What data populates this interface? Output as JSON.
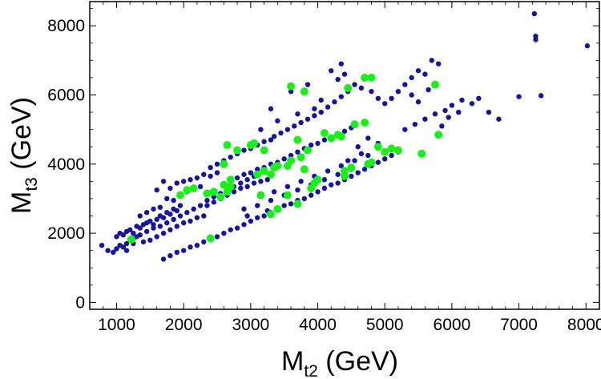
{
  "chart_data": {
    "type": "scatter",
    "title": "",
    "xlabel": {
      "main": "M",
      "sub": "t2",
      "unit": " (GeV)"
    },
    "ylabel": {
      "main": "M",
      "sub": "t3",
      "unit": " (GeV)"
    },
    "xlim": [
      600,
      8200
    ],
    "ylim": [
      -200,
      8700
    ],
    "xticks": [
      1000,
      2000,
      3000,
      4000,
      5000,
      6000,
      7000,
      8000
    ],
    "yticks": [
      0,
      2000,
      4000,
      6000,
      8000
    ],
    "grid": false,
    "legend": "none",
    "series": [
      {
        "name": "blue points",
        "color": "#1414a0",
        "marker_size": "small",
        "points": [
          [
            780,
            1650
          ],
          [
            870,
            1500
          ],
          [
            950,
            1450
          ],
          [
            1000,
            1550
          ],
          [
            1050,
            1650
          ],
          [
            1100,
            1600
          ],
          [
            1150,
            1700
          ],
          [
            1200,
            1800
          ],
          [
            1250,
            1850
          ],
          [
            1300,
            1900
          ],
          [
            1000,
            1900
          ],
          [
            1050,
            2000
          ],
          [
            1100,
            1950
          ],
          [
            1150,
            2050
          ],
          [
            1200,
            2100
          ],
          [
            1250,
            2000
          ],
          [
            1300,
            2200
          ],
          [
            1350,
            2150
          ],
          [
            1400,
            2250
          ],
          [
            1450,
            2300
          ],
          [
            1500,
            2350
          ],
          [
            1550,
            2250
          ],
          [
            1600,
            2400
          ],
          [
            1650,
            2500
          ],
          [
            1700,
            2450
          ],
          [
            1750,
            2600
          ],
          [
            1800,
            2550
          ],
          [
            1850,
            2700
          ],
          [
            1900,
            2650
          ],
          [
            1950,
            2800
          ],
          [
            1400,
            1750
          ],
          [
            1500,
            1800
          ],
          [
            1600,
            1900
          ],
          [
            1700,
            2000
          ],
          [
            1800,
            2100
          ],
          [
            1900,
            2200
          ],
          [
            2000,
            2300
          ],
          [
            2100,
            2350
          ],
          [
            2200,
            2450
          ],
          [
            2300,
            2500
          ],
          [
            1350,
            2500
          ],
          [
            1450,
            2600
          ],
          [
            1550,
            2700
          ],
          [
            1650,
            2750
          ],
          [
            1750,
            3000
          ],
          [
            1850,
            2950
          ],
          [
            1950,
            3100
          ],
          [
            2050,
            3200
          ],
          [
            2150,
            3300
          ],
          [
            2250,
            3350
          ],
          [
            1700,
            3500
          ],
          [
            1600,
            3250
          ],
          [
            1800,
            3300
          ],
          [
            1900,
            3450
          ],
          [
            2000,
            3500
          ],
          [
            2100,
            3550
          ],
          [
            2200,
            3600
          ],
          [
            2300,
            3700
          ],
          [
            2400,
            3650
          ],
          [
            2500,
            3750
          ],
          [
            2350,
            2800
          ],
          [
            2450,
            2900
          ],
          [
            2550,
            3000
          ],
          [
            2650,
            3100
          ],
          [
            2750,
            3200
          ],
          [
            2850,
            3300
          ],
          [
            2950,
            3350
          ],
          [
            3050,
            3450
          ],
          [
            3150,
            3500
          ],
          [
            3250,
            3550
          ],
          [
            2400,
            3900
          ],
          [
            2500,
            4000
          ],
          [
            2600,
            4100
          ],
          [
            2700,
            4200
          ],
          [
            2800,
            4300
          ],
          [
            2900,
            4400
          ],
          [
            3000,
            4450
          ],
          [
            3100,
            4550
          ],
          [
            3200,
            4650
          ],
          [
            3300,
            4700
          ],
          [
            2600,
            3400
          ],
          [
            2700,
            3500
          ],
          [
            2800,
            3600
          ],
          [
            2900,
            3700
          ],
          [
            3000,
            3750
          ],
          [
            3100,
            3850
          ],
          [
            3200,
            3900
          ],
          [
            3300,
            4000
          ],
          [
            3400,
            4050
          ],
          [
            3500,
            4150
          ],
          [
            3350,
            4800
          ],
          [
            3450,
            4900
          ],
          [
            3550,
            5000
          ],
          [
            3650,
            5100
          ],
          [
            3750,
            5200
          ],
          [
            3850,
            5300
          ],
          [
            3950,
            5400
          ],
          [
            4050,
            5500
          ],
          [
            4150,
            5650
          ],
          [
            4250,
            5800
          ],
          [
            3600,
            4250
          ],
          [
            3700,
            4350
          ],
          [
            3800,
            4450
          ],
          [
            3900,
            4550
          ],
          [
            4000,
            4600
          ],
          [
            4100,
            4700
          ],
          [
            4200,
            4750
          ],
          [
            4300,
            4850
          ],
          [
            4400,
            4950
          ],
          [
            4500,
            5050
          ],
          [
            4350,
            5950
          ],
          [
            4450,
            6100
          ],
          [
            4300,
            6450
          ],
          [
            4400,
            6600
          ],
          [
            4550,
            6300
          ],
          [
            4650,
            6200
          ],
          [
            4800,
            6100
          ],
          [
            4900,
            5900
          ],
          [
            5000,
            5750
          ],
          [
            5100,
            5900
          ],
          [
            4200,
            6700
          ],
          [
            4350,
            6900
          ],
          [
            3850,
            6300
          ],
          [
            3600,
            6100
          ],
          [
            3300,
            5600
          ],
          [
            3150,
            5000
          ],
          [
            3400,
            5250
          ],
          [
            3700,
            5450
          ],
          [
            3950,
            5600
          ],
          [
            4050,
            5850
          ],
          [
            5200,
            6100
          ],
          [
            5300,
            6300
          ],
          [
            5400,
            6500
          ],
          [
            5500,
            6700
          ],
          [
            5600,
            6600
          ],
          [
            5700,
            7000
          ],
          [
            5800,
            6900
          ],
          [
            5400,
            6000
          ],
          [
            5500,
            5800
          ],
          [
            5650,
            6150
          ],
          [
            5300,
            5000
          ],
          [
            5450,
            5150
          ],
          [
            5600,
            5300
          ],
          [
            5750,
            5450
          ],
          [
            5900,
            5550
          ],
          [
            6000,
            5700
          ],
          [
            6150,
            5850
          ],
          [
            6300,
            5750
          ],
          [
            6400,
            5900
          ],
          [
            6100,
            5500
          ],
          [
            1700,
            1250
          ],
          [
            1800,
            1350
          ],
          [
            1900,
            1450
          ],
          [
            2000,
            1500
          ],
          [
            2100,
            1600
          ],
          [
            2200,
            1650
          ],
          [
            2300,
            1750
          ],
          [
            2400,
            1850
          ],
          [
            2500,
            1900
          ],
          [
            2600,
            2000
          ],
          [
            2700,
            2100
          ],
          [
            2800,
            2150
          ],
          [
            2900,
            2250
          ],
          [
            3000,
            2350
          ],
          [
            3100,
            2450
          ],
          [
            3200,
            2500
          ],
          [
            3300,
            2600
          ],
          [
            3400,
            2700
          ],
          [
            3500,
            2800
          ],
          [
            3600,
            2850
          ],
          [
            3700,
            2950
          ],
          [
            3800,
            3000
          ],
          [
            3900,
            3100
          ],
          [
            4000,
            3200
          ],
          [
            4100,
            3300
          ],
          [
            4200,
            3400
          ],
          [
            4300,
            3450
          ],
          [
            4400,
            3550
          ],
          [
            4500,
            3650
          ],
          [
            4600,
            3750
          ],
          [
            4700,
            3850
          ],
          [
            4800,
            3950
          ],
          [
            4900,
            4050
          ],
          [
            5000,
            4150
          ],
          [
            5100,
            4250
          ],
          [
            5200,
            4350
          ],
          [
            4900,
            4600
          ],
          [
            4750,
            4750
          ],
          [
            4600,
            4500
          ],
          [
            4650,
            4300
          ],
          [
            2900,
            2700
          ],
          [
            3100,
            2800
          ],
          [
            3300,
            2950
          ],
          [
            3500,
            3100
          ],
          [
            3700,
            3250
          ],
          [
            3900,
            3400
          ],
          [
            4100,
            3550
          ],
          [
            4300,
            3700
          ],
          [
            4500,
            3850
          ],
          [
            3250,
            2650
          ],
          [
            2950,
            2500
          ],
          [
            3350,
            3200
          ],
          [
            3550,
            3350
          ],
          [
            3750,
            3500
          ],
          [
            3950,
            3650
          ],
          [
            4150,
            3800
          ],
          [
            4350,
            3950
          ],
          [
            4550,
            4100
          ],
          [
            4750,
            4250
          ],
          [
            4450,
            4100
          ],
          [
            6700,
            5300
          ],
          [
            7000,
            5950
          ],
          [
            7250,
            7600
          ],
          [
            7250,
            7700
          ],
          [
            7230,
            8350
          ],
          [
            7330,
            5980
          ],
          [
            8020,
            7420
          ],
          [
            6550,
            5500
          ],
          [
            5850,
            5100
          ],
          [
            5950,
            5350
          ],
          [
            1150,
            1500
          ],
          [
            1250,
            1700
          ],
          [
            1350,
            1950
          ],
          [
            1450,
            2050
          ],
          [
            1550,
            2150
          ],
          [
            1650,
            2200
          ],
          [
            1750,
            2300
          ],
          [
            1850,
            2400
          ],
          [
            1950,
            2500
          ],
          [
            2050,
            2600
          ],
          [
            2150,
            2700
          ],
          [
            2250,
            2800
          ],
          [
            2350,
            2950
          ],
          [
            2450,
            3050
          ],
          [
            2550,
            3150
          ],
          [
            2650,
            3250
          ],
          [
            2750,
            3350
          ],
          [
            2850,
            3450
          ],
          [
            2950,
            3550
          ],
          [
            3050,
            3650
          ]
        ]
      },
      {
        "name": "green points",
        "color": "#19f019",
        "marker_size": "large",
        "points": [
          [
            1220,
            1820
          ],
          [
            1950,
            3100
          ],
          [
            2050,
            3250
          ],
          [
            2150,
            3300
          ],
          [
            2350,
            3150
          ],
          [
            2450,
            3200
          ],
          [
            2550,
            3050
          ],
          [
            2600,
            3400
          ],
          [
            2650,
            3200
          ],
          [
            2700,
            3350
          ],
          [
            2600,
            4000
          ],
          [
            2700,
            3550
          ],
          [
            2650,
            4550
          ],
          [
            2800,
            4400
          ],
          [
            3000,
            4550
          ],
          [
            3050,
            4600
          ],
          [
            3100,
            3700
          ],
          [
            3200,
            3800
          ],
          [
            3300,
            3700
          ],
          [
            3350,
            3900
          ],
          [
            3200,
            4400
          ],
          [
            3400,
            3950
          ],
          [
            3550,
            3950
          ],
          [
            3600,
            4100
          ],
          [
            3700,
            4700
          ],
          [
            3750,
            4200
          ],
          [
            3800,
            3850
          ],
          [
            3850,
            4400
          ],
          [
            3900,
            3300
          ],
          [
            3950,
            3450
          ],
          [
            4000,
            3550
          ],
          [
            4100,
            4900
          ],
          [
            4200,
            4750
          ],
          [
            4300,
            4850
          ],
          [
            4350,
            4800
          ],
          [
            4400,
            3800
          ],
          [
            4500,
            3900
          ],
          [
            4550,
            5150
          ],
          [
            4700,
            5200
          ],
          [
            4750,
            4000
          ],
          [
            4800,
            4050
          ],
          [
            4900,
            4500
          ],
          [
            5000,
            4350
          ],
          [
            5100,
            4450
          ],
          [
            5200,
            4400
          ],
          [
            3600,
            6250
          ],
          [
            3800,
            6100
          ],
          [
            4450,
            6200
          ],
          [
            4700,
            6500
          ],
          [
            4800,
            6500
          ],
          [
            5750,
            6300
          ],
          [
            5800,
            4850
          ],
          [
            5550,
            4300
          ],
          [
            3150,
            3100
          ],
          [
            3300,
            2550
          ],
          [
            3400,
            2700
          ],
          [
            3550,
            3100
          ],
          [
            3700,
            2850
          ],
          [
            2400,
            1850
          ],
          [
            4400,
            3650
          ]
        ]
      }
    ]
  }
}
